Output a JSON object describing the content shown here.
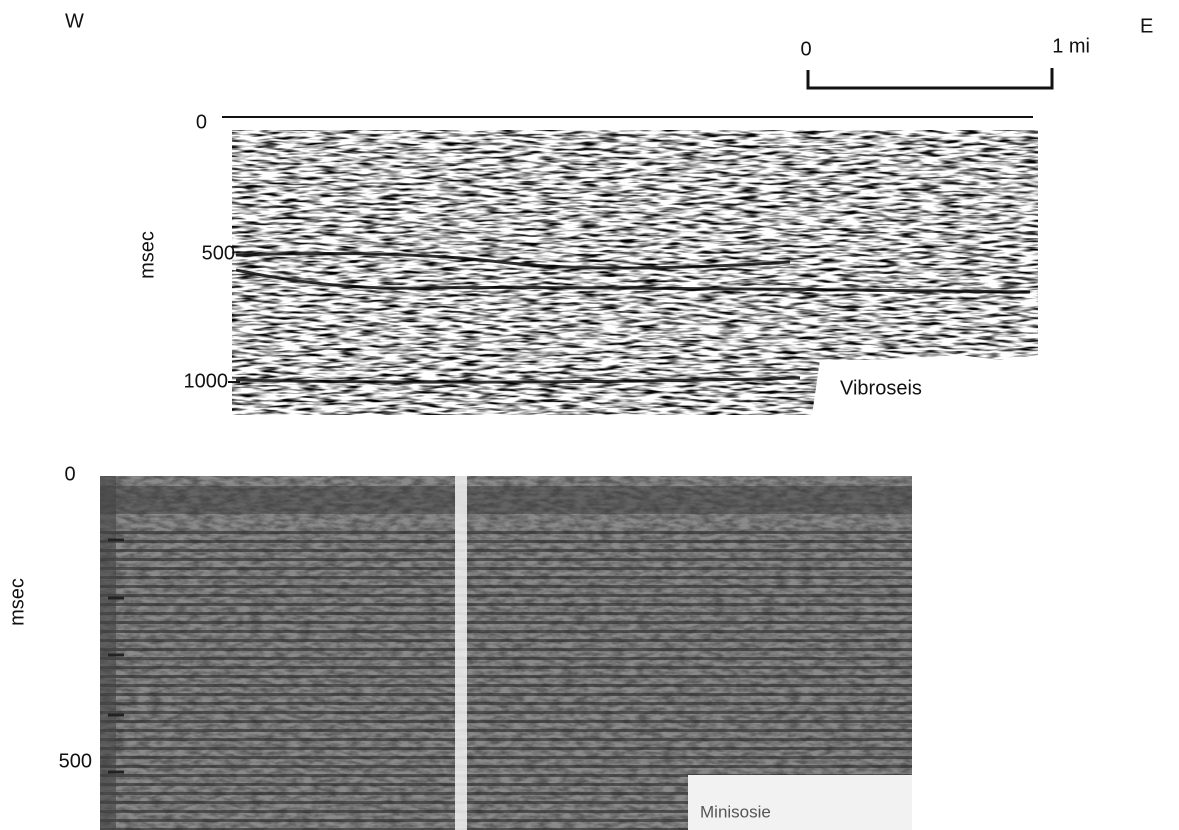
{
  "header": {
    "west": "W",
    "east": "E"
  },
  "scale_bar": {
    "start": "0",
    "end": "1 mi"
  },
  "top_panel": {
    "axis_label": "msec",
    "y_ticks": [
      "0",
      "500",
      "1000"
    ],
    "label": "Vibroseis"
  },
  "bottom_panel": {
    "axis_label": "msec",
    "y_ticks": [
      "0",
      "500"
    ],
    "label": "Minisosie"
  }
}
